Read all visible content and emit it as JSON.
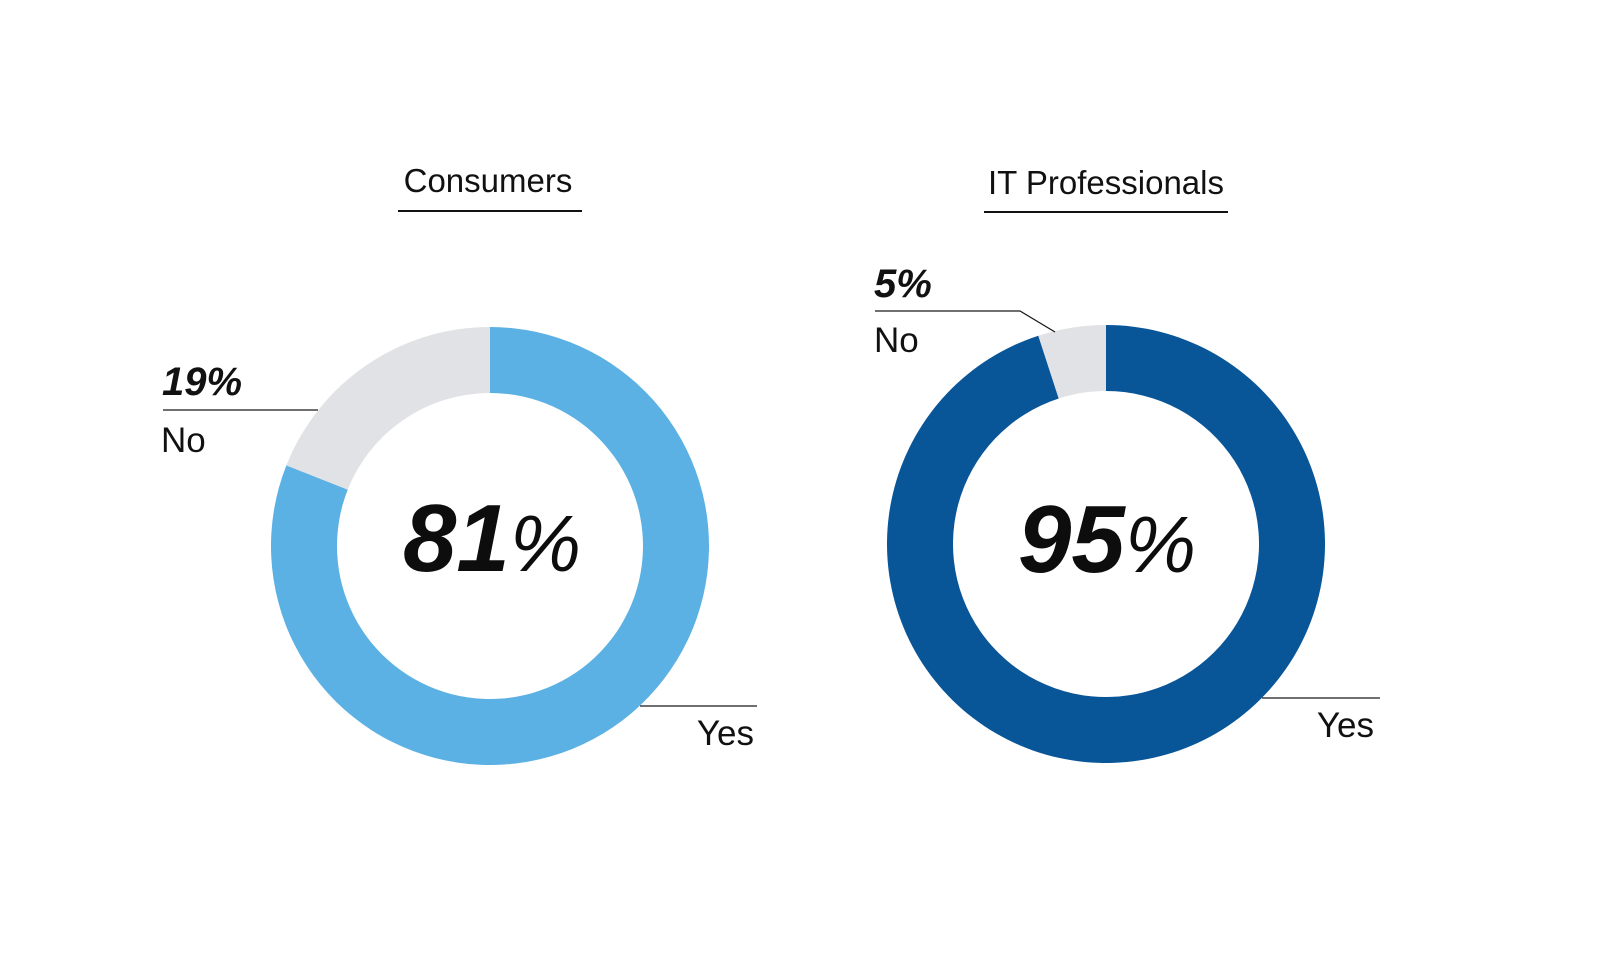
{
  "chart_data": [
    {
      "type": "pie",
      "title": "Consumers",
      "categories": [
        "Yes",
        "No"
      ],
      "values": [
        81,
        19
      ],
      "value_labels": [
        "81%",
        "19%"
      ],
      "center_value": "81",
      "center_unit": "%",
      "colors": [
        "#5bb1e3",
        "#e1e2e5"
      ]
    },
    {
      "type": "pie",
      "title": "IT Professionals",
      "categories": [
        "Yes",
        "No"
      ],
      "values": [
        95,
        5
      ],
      "value_labels": [
        "95%",
        "5%"
      ],
      "center_value": "95",
      "center_unit": "%",
      "colors": [
        "#085598",
        "#e1e2e5"
      ]
    }
  ]
}
